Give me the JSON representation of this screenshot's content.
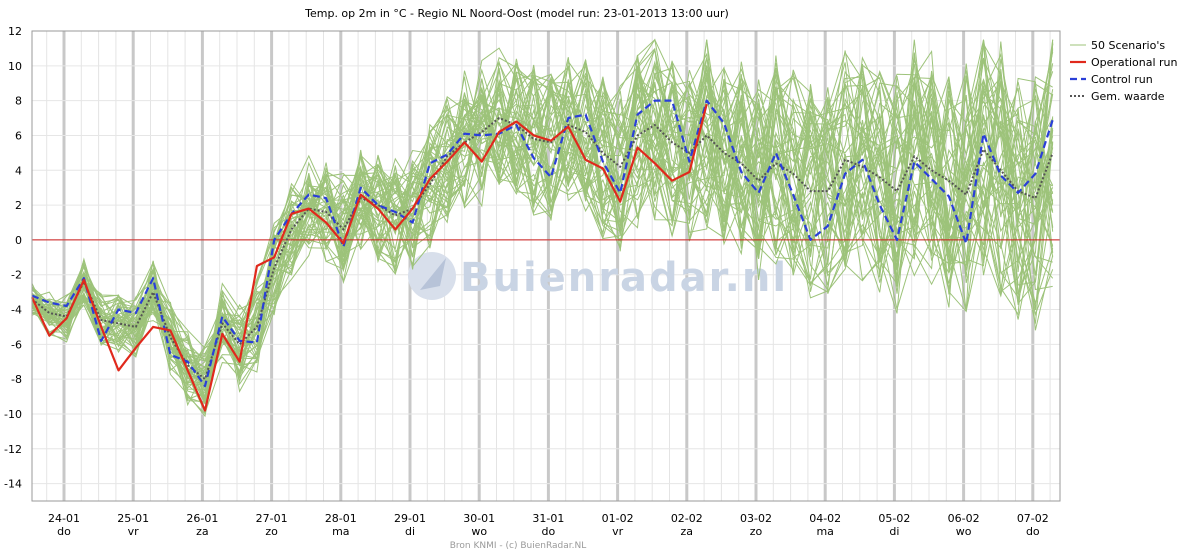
{
  "chart_data": {
    "type": "line",
    "title": "Temp. op 2m in °C - Regio NL Noord-Oost (model run: 23-01-2013 13:00 uur)",
    "ylim": [
      -15,
      12
    ],
    "yticks": [
      12,
      10,
      8,
      6,
      4,
      2,
      0,
      -2,
      -4,
      -6,
      -8,
      -10,
      -12,
      -14
    ],
    "grid": true,
    "legend_position": "right",
    "x_start": "23-01-2013 13:00",
    "x_step_hours": 6,
    "x_ticks": [
      {
        "date": "24-01",
        "day": "do"
      },
      {
        "date": "25-01",
        "day": "vr"
      },
      {
        "date": "26-01",
        "day": "za"
      },
      {
        "date": "27-01",
        "day": "zo"
      },
      {
        "date": "28-01",
        "day": "ma"
      },
      {
        "date": "29-01",
        "day": "di"
      },
      {
        "date": "30-01",
        "day": "wo"
      },
      {
        "date": "31-01",
        "day": "do"
      },
      {
        "date": "01-02",
        "day": "vr"
      },
      {
        "date": "02-02",
        "day": "za"
      },
      {
        "date": "03-02",
        "day": "zo"
      },
      {
        "date": "04-02",
        "day": "ma"
      },
      {
        "date": "05-02",
        "day": "di"
      },
      {
        "date": "06-02",
        "day": "wo"
      },
      {
        "date": "07-02",
        "day": "do"
      }
    ],
    "series": [
      {
        "name": "50 Scenario's",
        "color": "#9dc37a",
        "style": "thin-ensemble",
        "values": []
      },
      {
        "name": "Operational run",
        "color": "#e0291c",
        "style": "solid",
        "values": [
          -3.3,
          -5.5,
          -4.5,
          -2.3,
          -5.0,
          -7.5,
          -6.2,
          -5.0,
          -5.2,
          -7.5,
          -9.8,
          -5.4,
          -7.0,
          -1.5,
          -1.0,
          1.5,
          1.8,
          1.0,
          -0.2,
          2.6,
          1.8,
          0.6,
          1.8,
          3.5,
          4.5,
          5.6,
          4.5,
          6.2,
          6.8,
          6.0,
          5.7,
          6.5,
          4.6,
          4.1,
          2.2,
          5.3,
          4.4,
          3.4,
          3.9,
          7.8
        ]
      },
      {
        "name": "Control run",
        "color": "#2a3fd8",
        "style": "dashed",
        "values": [
          -3.2,
          -3.6,
          -3.8,
          -2.2,
          -5.8,
          -4.0,
          -4.2,
          -2.2,
          -6.6,
          -7.0,
          -8.4,
          -4.4,
          -5.8,
          -5.9,
          0.0,
          1.5,
          2.6,
          2.4,
          -0.4,
          3.0,
          2.0,
          1.6,
          1.0,
          4.4,
          4.9,
          6.1,
          6.0,
          6.1,
          6.6,
          4.7,
          3.6,
          7.0,
          7.2,
          4.5,
          2.7,
          7.2,
          8.0,
          8.0,
          4.5,
          8.0,
          6.7,
          3.9,
          2.7,
          5.0,
          2.6,
          0.0,
          0.8,
          3.8,
          4.6,
          2.0,
          0.0,
          4.5,
          3.5,
          2.5,
          -0.2,
          6.1,
          3.7,
          2.7,
          3.8,
          6.9
        ]
      },
      {
        "name": "Gem. waarde",
        "color": "#555555",
        "style": "dotted",
        "values": [
          -3.4,
          -4.2,
          -4.4,
          -2.4,
          -4.6,
          -4.8,
          -5.0,
          -3.0,
          -5.6,
          -7.2,
          -8.0,
          -4.8,
          -6.0,
          -5.0,
          -1.6,
          0.6,
          1.8,
          1.6,
          0.6,
          2.4,
          2.0,
          1.4,
          1.8,
          3.2,
          4.8,
          5.6,
          6.2,
          7.0,
          6.6,
          5.8,
          5.6,
          6.6,
          6.2,
          5.0,
          4.2,
          6.0,
          6.6,
          5.6,
          5.0,
          6.0,
          5.0,
          4.4,
          3.4,
          4.4,
          3.8,
          2.8,
          2.8,
          4.6,
          4.2,
          3.6,
          2.8,
          4.8,
          4.0,
          3.4,
          2.6,
          5.2,
          4.0,
          2.8,
          2.4,
          5.0
        ]
      }
    ],
    "zero_line": {
      "value": 0,
      "color": "#cc1a1a"
    },
    "watermark": "Buienradar.nl",
    "credit": "Bron KNMI - (c) BuienRadar.NL"
  }
}
